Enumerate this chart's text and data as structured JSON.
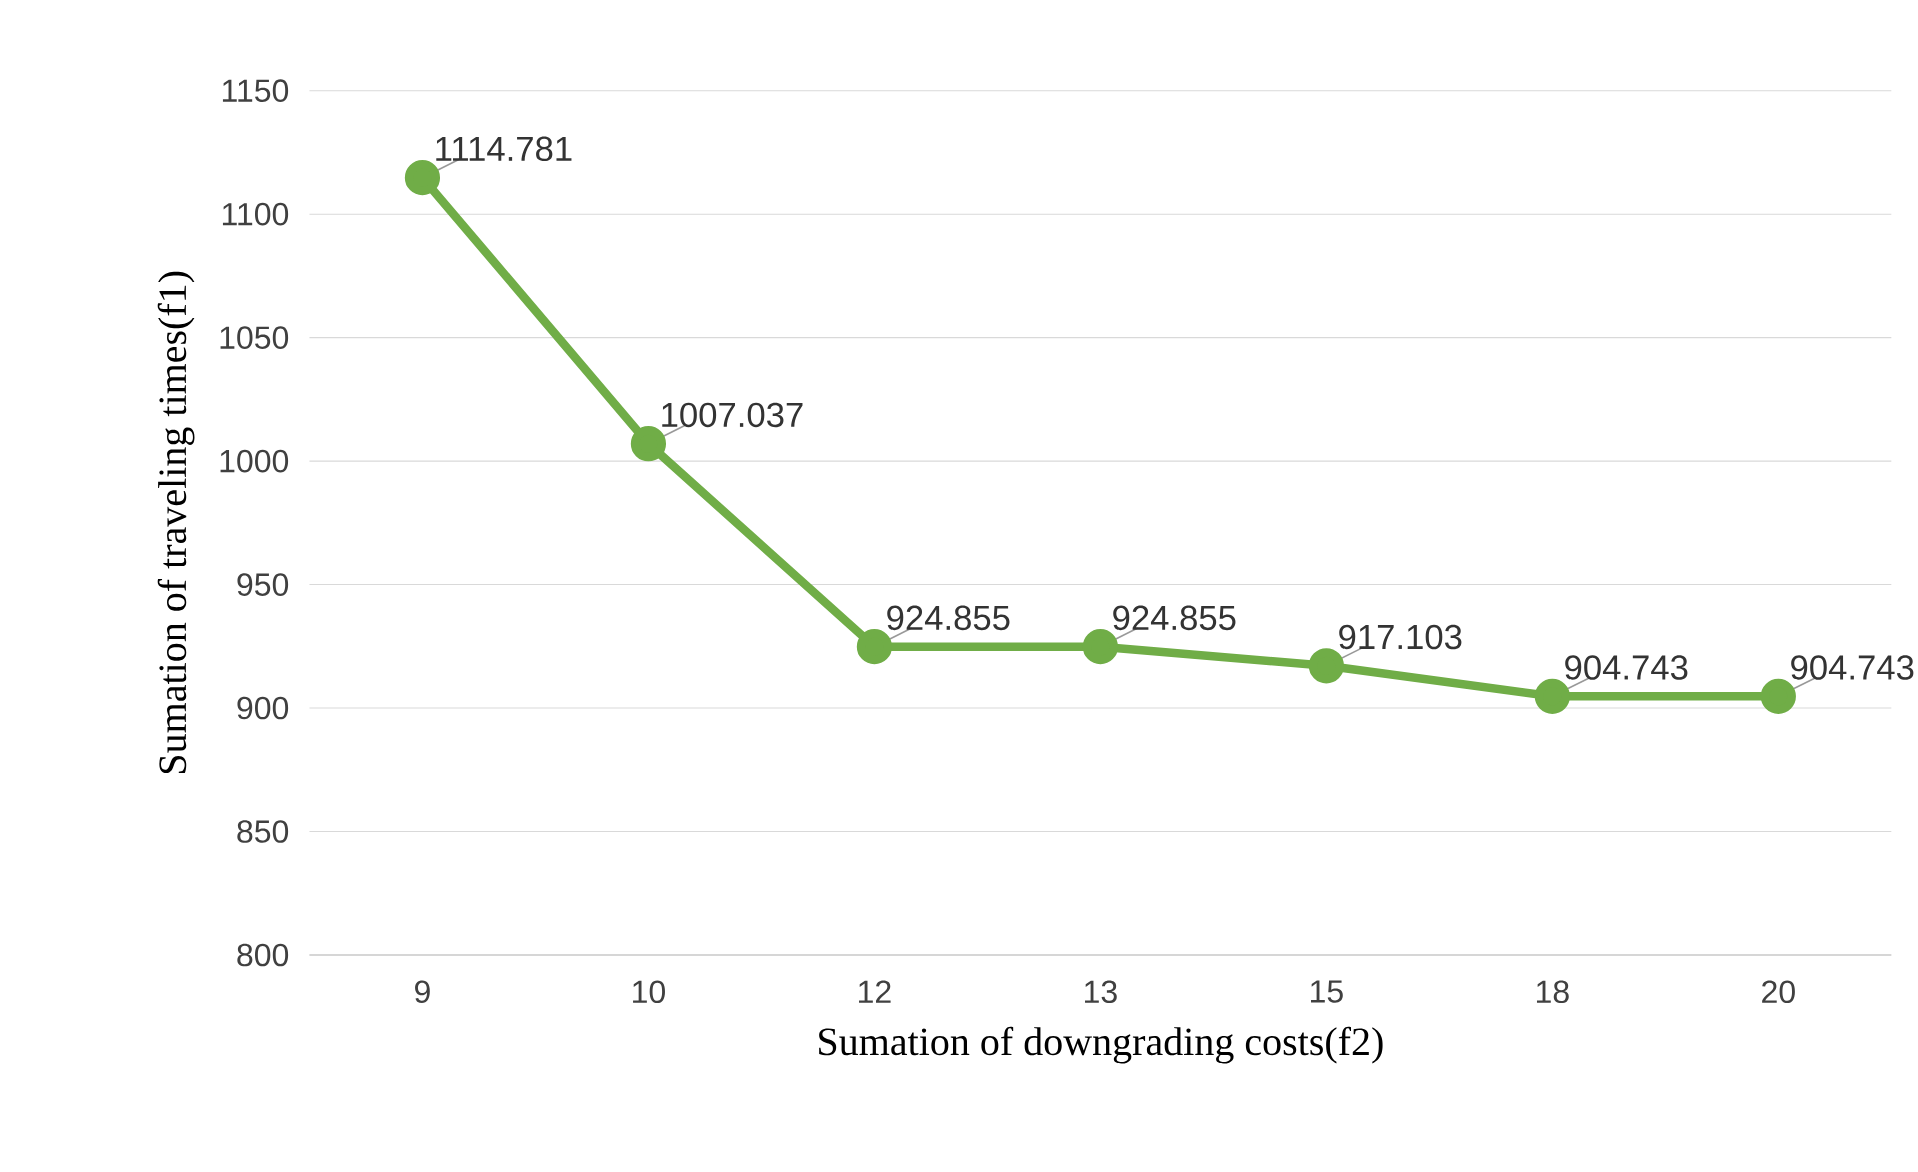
{
  "chart_data": {
    "type": "line",
    "xlabel": "Sumation of downgrading costs(f2)",
    "ylabel": "Sumation of traveling times(f1)",
    "categories": [
      "9",
      "10",
      "12",
      "13",
      "15",
      "18",
      "20"
    ],
    "values": [
      1114.781,
      1007.037,
      924.855,
      924.855,
      917.103,
      904.743,
      904.743
    ],
    "color": "#70ad47",
    "ylim": [
      800,
      1150
    ],
    "yticks": [
      800,
      850,
      900,
      950,
      1000,
      1050,
      1100,
      1150
    ],
    "grid": "y",
    "marker": "circle",
    "line_style": "solid",
    "data_labels": true
  }
}
